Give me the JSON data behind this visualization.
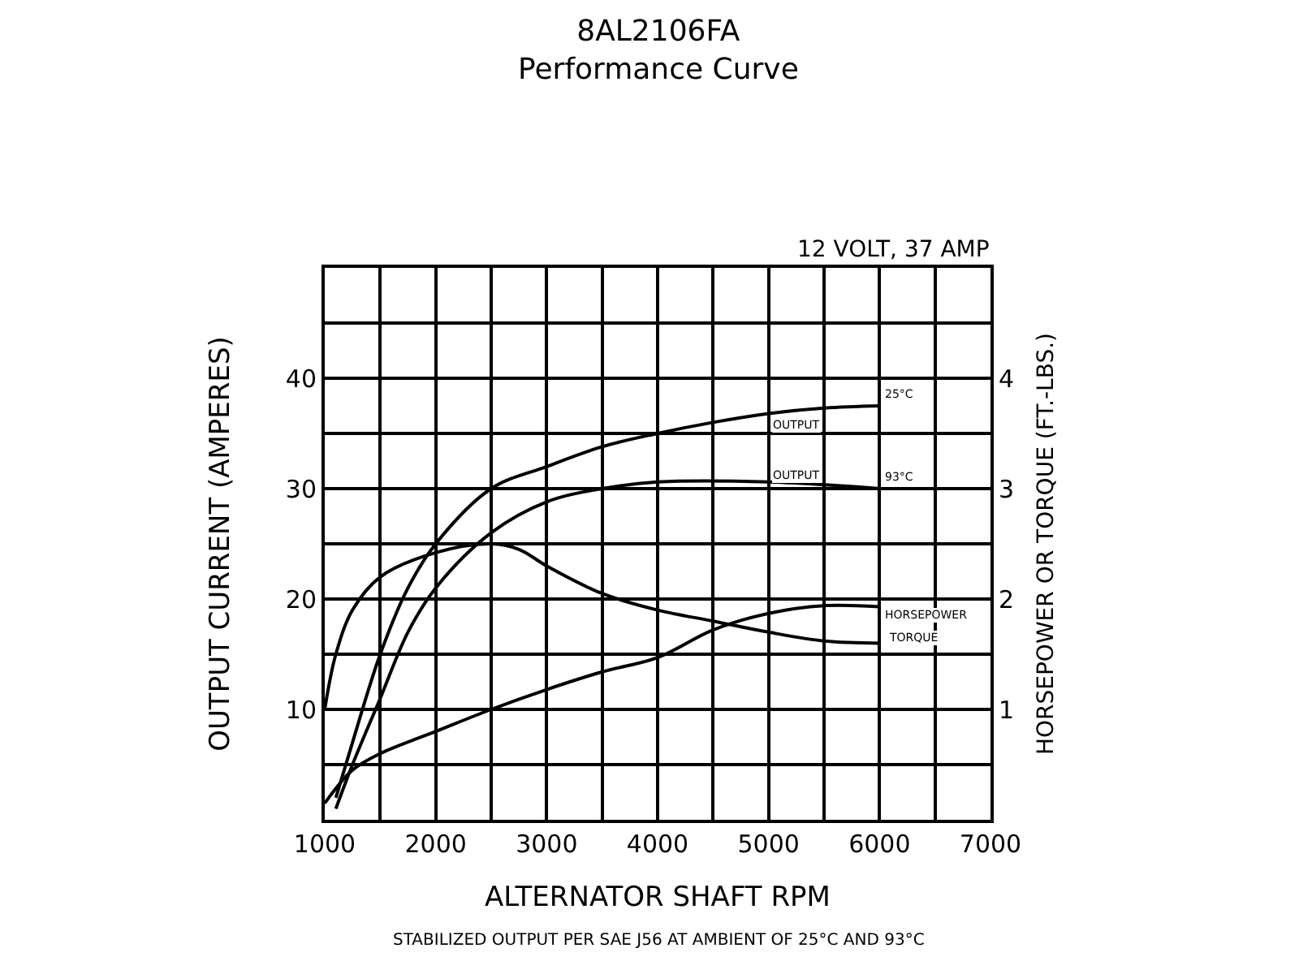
{
  "chart_data": {
    "type": "line",
    "title": "8AL2106FA",
    "subtitle": "Performance Curve",
    "xlabel": "ALTERNATOR SHAFT RPM",
    "ylabel": "OUTPUT CURRENT (AMPERES)",
    "y2label": "HORSEPOWER OR TORQUE (FT.-LBS.)",
    "annotations": [
      "12 VOLT, 37 AMP",
      "STABILIZED OUTPUT PER SAE J56 AT AMBIENT OF 25°C AND 93°C",
      "25°C",
      "OUTPUT",
      "OUTPUT",
      "93°C",
      "HORSEPOWER",
      "TORQUE"
    ],
    "series": [
      {
        "color": "#000000",
        "x": [
          1100,
          1250,
          1500,
          1750,
          2000,
          2500,
          3000,
          3500,
          4000,
          4500,
          5000,
          5500,
          6000
        ],
        "values": [
          2,
          7,
          15,
          21,
          25,
          30,
          32,
          33.8,
          35,
          36,
          36.8,
          37.3,
          37.5
        ]
      },
      {
        "color": "#000000",
        "x": [
          1100,
          1250,
          1500,
          1750,
          2000,
          2500,
          3000,
          3500,
          4000,
          5000,
          6000
        ],
        "values": [
          1,
          5,
          11,
          17,
          21,
          26,
          28.8,
          30,
          30.6,
          30.6,
          30
        ]
      },
      {
        "color": "#000000",
        "axis": "y2",
        "x": [
          1000,
          1100,
          1250,
          1500,
          2000,
          2500,
          2750,
          3000,
          3500,
          4000,
          4500,
          5000,
          5500,
          6000
        ],
        "values": [
          1.0,
          1.5,
          1.9,
          2.2,
          2.42,
          2.5,
          2.45,
          2.3,
          2.05,
          1.9,
          1.8,
          1.7,
          1.62,
          1.6
        ]
      },
      {
        "color": "#000000",
        "axis": "y2",
        "x": [
          1000,
          1250,
          1500,
          2000,
          2500,
          3000,
          3500,
          4000,
          4500,
          5000,
          5500,
          6000
        ],
        "values": [
          0.15,
          0.45,
          0.6,
          0.8,
          1.0,
          1.18,
          1.34,
          1.47,
          1.72,
          1.87,
          1.94,
          1.93
        ]
      }
    ],
    "xlim": [
      1000,
      7000
    ],
    "xticks": [
      1000,
      {
        "value": 1500,
        "label": null
      },
      2000,
      {
        "value": 2500,
        "label": null
      },
      3000,
      {
        "value": 3500,
        "label": null
      },
      4000,
      {
        "value": 4500,
        "label": null
      },
      5000,
      {
        "value": 5500,
        "label": null
      },
      6000,
      {
        "value": 6500,
        "label": null
      },
      7000
    ],
    "ylim": [
      0,
      50
    ],
    "yticks": [
      {
        "value": 0,
        "label": null
      },
      {
        "value": 5,
        "label": null
      },
      10,
      {
        "value": 15,
        "label": null
      },
      20,
      {
        "value": 25,
        "label": null
      },
      30,
      {
        "value": 35,
        "label": null
      },
      40,
      {
        "value": 45,
        "label": null
      },
      {
        "value": 50,
        "label": null
      }
    ],
    "y2lim": [
      0,
      5
    ],
    "y2ticks": [
      1,
      2,
      3,
      4
    ],
    "grid": true,
    "line_style": "solid"
  }
}
